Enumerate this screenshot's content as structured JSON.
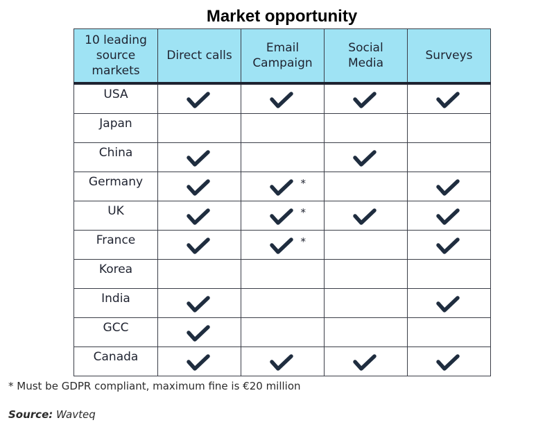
{
  "title": "Market opportunity",
  "columns": [
    {
      "key": "market",
      "label": "10 leading source markets"
    },
    {
      "key": "direct_calls",
      "label": "Direct calls"
    },
    {
      "key": "email_campaign",
      "label": "Email Campaign"
    },
    {
      "key": "social_media",
      "label": "Social Media"
    },
    {
      "key": "surveys",
      "label": "Surveys"
    }
  ],
  "header_lines": [
    [
      "10 leading",
      "source",
      "markets"
    ],
    [
      "Direct calls"
    ],
    [
      "Email",
      "Campaign"
    ],
    [
      "Social",
      "Media"
    ],
    [
      "Surveys"
    ]
  ],
  "rows": [
    {
      "market": "USA",
      "direct_calls": true,
      "email_campaign": true,
      "social_media": true,
      "surveys": true
    },
    {
      "market": "Japan",
      "direct_calls": false,
      "email_campaign": false,
      "social_media": false,
      "surveys": false
    },
    {
      "market": "China",
      "direct_calls": true,
      "email_campaign": false,
      "social_media": true,
      "surveys": false
    },
    {
      "market": "Germany",
      "direct_calls": true,
      "email_campaign": "*",
      "social_media": false,
      "surveys": true
    },
    {
      "market": "UK",
      "direct_calls": true,
      "email_campaign": "*",
      "social_media": true,
      "surveys": true
    },
    {
      "market": "France",
      "direct_calls": true,
      "email_campaign": "*",
      "social_media": false,
      "surveys": true
    },
    {
      "market": "Korea",
      "direct_calls": false,
      "email_campaign": false,
      "social_media": false,
      "surveys": false
    },
    {
      "market": "India",
      "direct_calls": true,
      "email_campaign": false,
      "social_media": false,
      "surveys": true
    },
    {
      "market": "GCC",
      "direct_calls": true,
      "email_campaign": false,
      "social_media": false,
      "surveys": false
    },
    {
      "market": "Canada",
      "direct_calls": true,
      "email_campaign": true,
      "social_media": true,
      "surveys": true
    }
  ],
  "asterisk": "*",
  "footnote": "* Must be GDPR compliant, maximum fine is €20 million",
  "source": {
    "label": "Source:",
    "value": "Wavteq"
  },
  "colors": {
    "header_bg": "#9fe3f4",
    "check": "#1f2d3f",
    "border": "#3a3d47"
  },
  "icons": {
    "check": "checkmark-icon"
  }
}
